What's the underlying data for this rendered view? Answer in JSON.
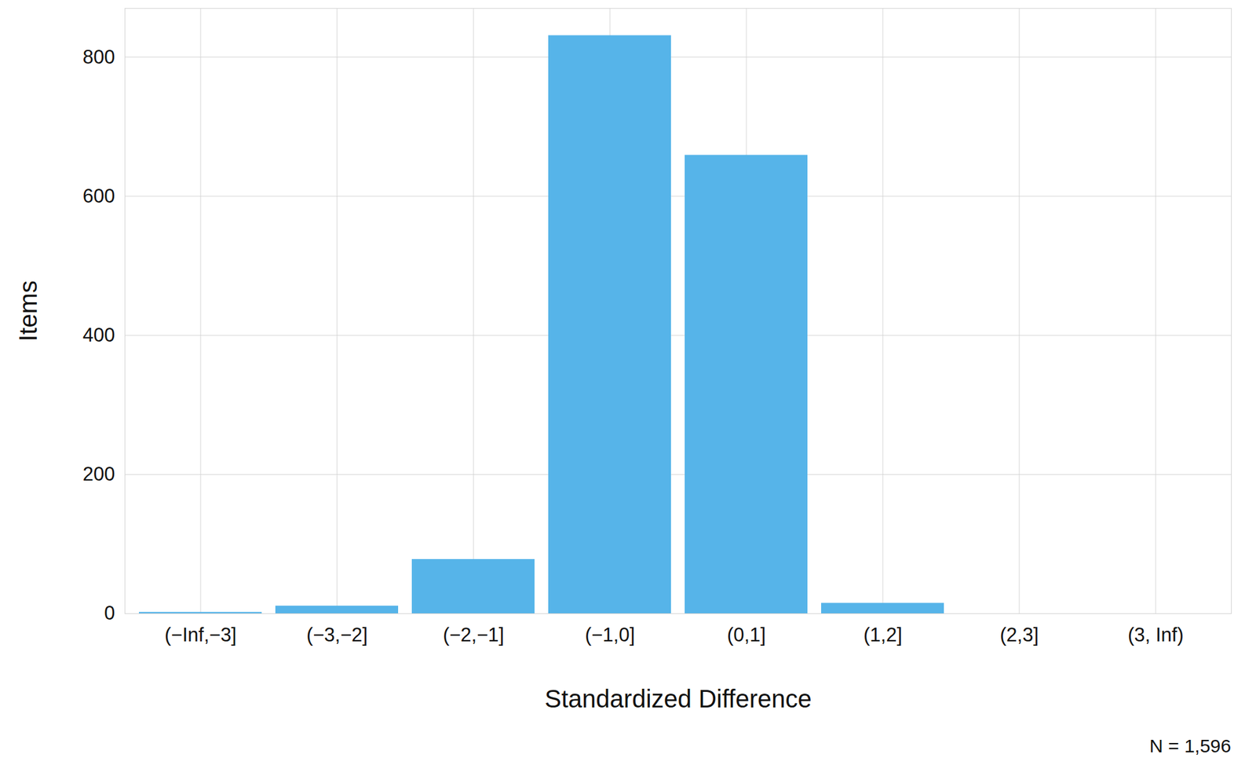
{
  "chart_data": {
    "type": "bar",
    "categories": [
      "(−Inf,−3]",
      "(−3,−2]",
      "(−2,−1]",
      "(−1,0]",
      "(0,1]",
      "(1,2]",
      "(2,3]",
      "(3, Inf)"
    ],
    "values": [
      2,
      11,
      78,
      831,
      659,
      15,
      0,
      0
    ],
    "color": "#56b4e9",
    "xlabel": "Standardized Difference",
    "ylabel": "Items",
    "caption": "N = 1,596",
    "ylim": [
      0,
      870
    ],
    "yticks": [
      0,
      200,
      400,
      600,
      800
    ],
    "grid": true
  }
}
